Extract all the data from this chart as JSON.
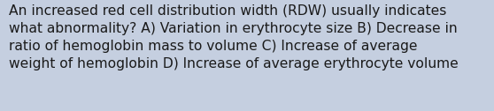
{
  "background_color": "#c5cfe0",
  "text_lines": [
    "An increased red cell distribution width (RDW) usually indicates",
    "what abnormality? A) Variation in erythrocyte size B) Decrease in",
    "ratio of hemoglobin mass to volume C) Increase of average",
    "weight of hemoglobin D) Increase of average erythrocyte volume"
  ],
  "text_color": "#1a1a1a",
  "font_size": 11.2,
  "font_family": "DejaVu Sans",
  "fig_width": 5.58,
  "fig_height": 1.26,
  "dpi": 100
}
